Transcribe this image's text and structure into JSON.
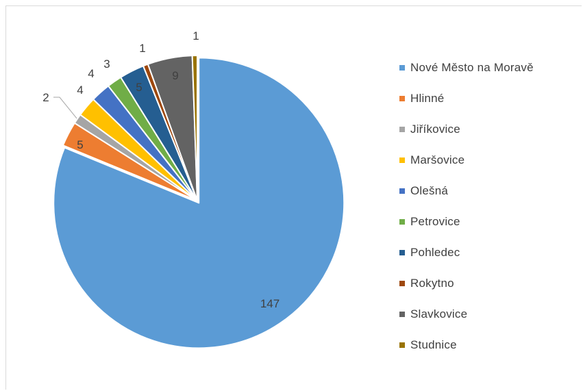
{
  "chart_data": {
    "type": "pie",
    "categories": [
      "Nové Město na Moravě",
      "Hlinné",
      "Jiříkovice",
      "Maršovice",
      "Olešná",
      "Petrovice",
      "Pohledec",
      "Rokytno",
      "Slavkovice",
      "Studnice"
    ],
    "values": [
      147,
      5,
      2,
      4,
      4,
      3,
      5,
      1,
      9,
      1
    ],
    "colors": [
      "#5B9BD5",
      "#ED7D31",
      "#A5A5A5",
      "#FFC000",
      "#4472C4",
      "#70AD47",
      "#255E91",
      "#9E480E",
      "#636363",
      "#997300"
    ],
    "data_labels": [
      "147",
      "5",
      "2",
      "4",
      "4",
      "3",
      "5",
      "1",
      "9",
      "1"
    ],
    "legend_position": "right",
    "start_angle": 0,
    "direction": "clockwise",
    "exploded_series": "Nové Město na Moravě",
    "title": ""
  }
}
